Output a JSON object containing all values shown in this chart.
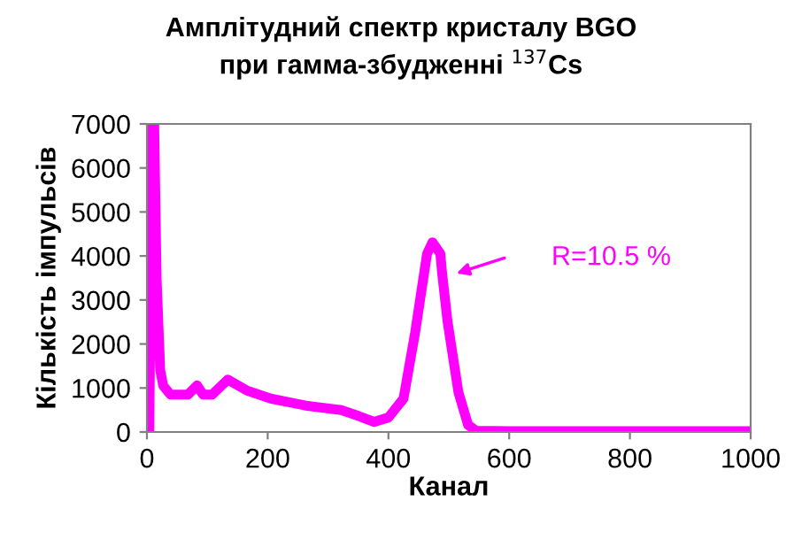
{
  "chart_data": {
    "type": "line",
    "title": "Амплітудний спектр кристалу BGO\nпри гамма-збудженні $^{137}$Cs",
    "xlabel": "Канал",
    "ylabel": "Кількість імпульсів",
    "series": [
      {
        "color": "#ff00ff",
        "x": [
          0,
          4,
          8,
          12,
          16,
          22,
          27,
          39,
          68,
          83,
          93,
          108,
          134,
          166,
          205,
          263,
          322,
          351,
          376,
          400,
          425,
          444,
          464,
          473,
          486,
          489,
          498,
          516,
          532,
          545,
          600,
          700,
          800,
          900,
          1000
        ],
        "values": [
          0,
          0,
          7000,
          7000,
          3500,
          1400,
          1050,
          850,
          850,
          1060,
          850,
          850,
          1190,
          940,
          760,
          600,
          500,
          360,
          230,
          330,
          760,
          2240,
          4050,
          4310,
          4050,
          3600,
          2500,
          900,
          160,
          30,
          20,
          20,
          20,
          20,
          20
        ]
      }
    ],
    "xlim": [
      0,
      1000
    ],
    "xticks": [
      0,
      200,
      400,
      600,
      800,
      1000
    ],
    "ylim": [
      0,
      7000
    ],
    "yticks": [
      0,
      1000,
      2000,
      3000,
      4000,
      5000,
      6000,
      7000
    ],
    "grid": false,
    "marker": "none",
    "line_style": "solid",
    "annotations": [
      "R=10.5 %"
    ]
  }
}
